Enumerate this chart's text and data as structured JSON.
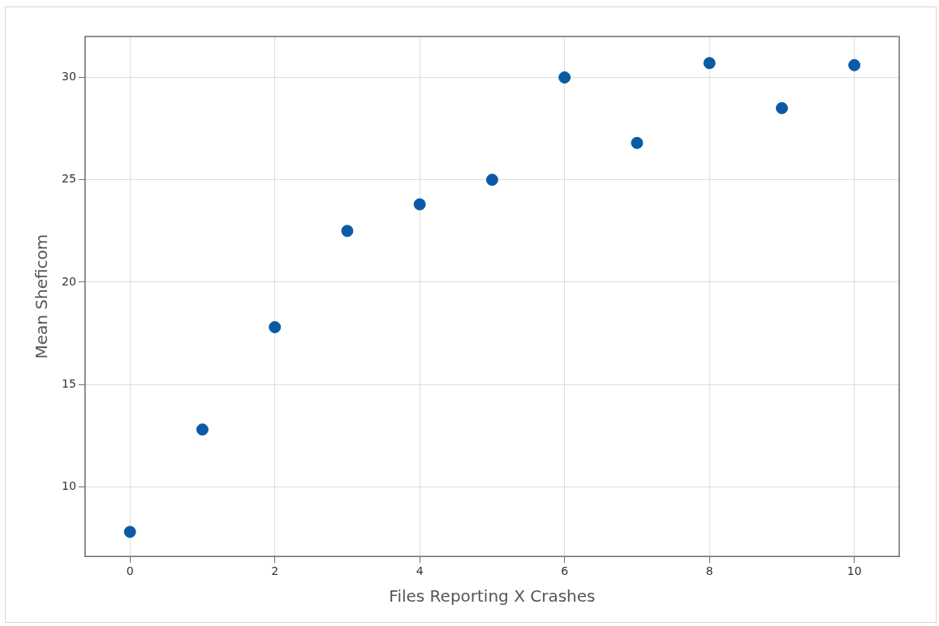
{
  "chart_data": {
    "type": "scatter",
    "xlabel": "Files Reporting X Crashes",
    "ylabel": "Mean Sheficom",
    "x": [
      0,
      1,
      2,
      3,
      4,
      5,
      6,
      7,
      8,
      9,
      10
    ],
    "series": [
      {
        "color": "#0b5aa6",
        "values": [
          7.8,
          12.8,
          17.8,
          22.5,
          23.8,
          25,
          30,
          26.8,
          30.7,
          28.5,
          30.6
        ]
      }
    ],
    "xlim": [
      -0.62,
      10.62
    ],
    "ylim": [
      6.6,
      32
    ],
    "xticks": [
      0,
      2,
      4,
      6,
      8,
      10
    ],
    "yticks": [
      10,
      15,
      20,
      25,
      30
    ],
    "grid": true,
    "marker": "circle",
    "legend": false
  }
}
